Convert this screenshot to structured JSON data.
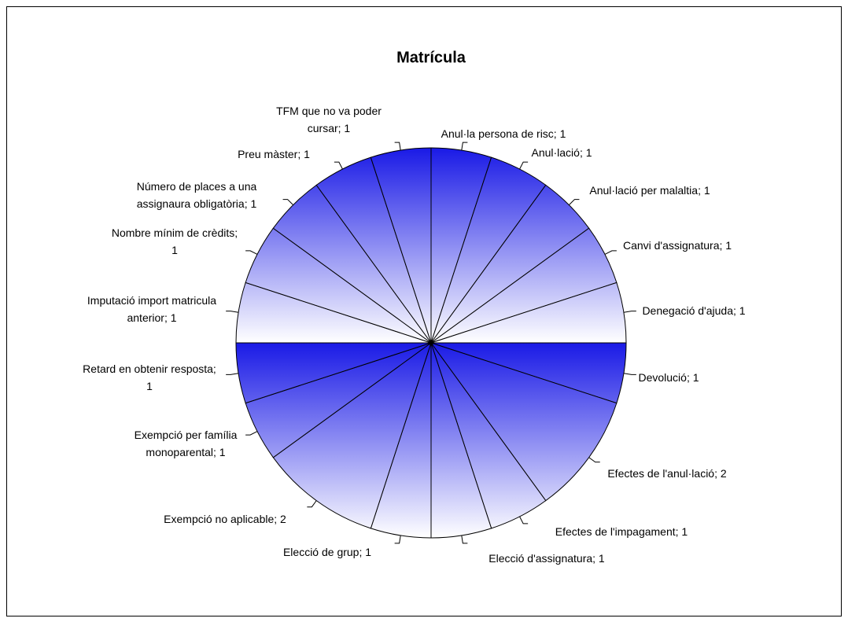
{
  "chart_data": {
    "type": "pie",
    "title": "Matrícula",
    "categories": [
      "Anul·la persona de risc; 1",
      "Anul·lació; 1",
      "Anul·lació per malaltia; 1",
      "Canvi d'assignatura; 1",
      "Denegació d'ajuda; 1",
      "Devolució; 1",
      "Efectes de l'anul·lació; 2",
      "Efectes de l'impagament; 1",
      "Elecció d'assignatura; 1",
      "Elecció de grup; 1",
      "Exempció no aplicable; 2",
      "Exempció per família\nmonoparental; 1",
      "Retard en obtenir resposta;\n1",
      "Imputació import matricula\nanterior; 1",
      "Nombre mínim de crèdits;\n1",
      "Número de places a una\nassignaura obligatòria; 1",
      "Preu màster; 1",
      "TFM que no va poder\ncursar; 1"
    ],
    "values": [
      1,
      1,
      1,
      1,
      1,
      1,
      2,
      1,
      1,
      1,
      2,
      1,
      1,
      1,
      1,
      1,
      1,
      1
    ],
    "color": "#1a1ae6"
  }
}
